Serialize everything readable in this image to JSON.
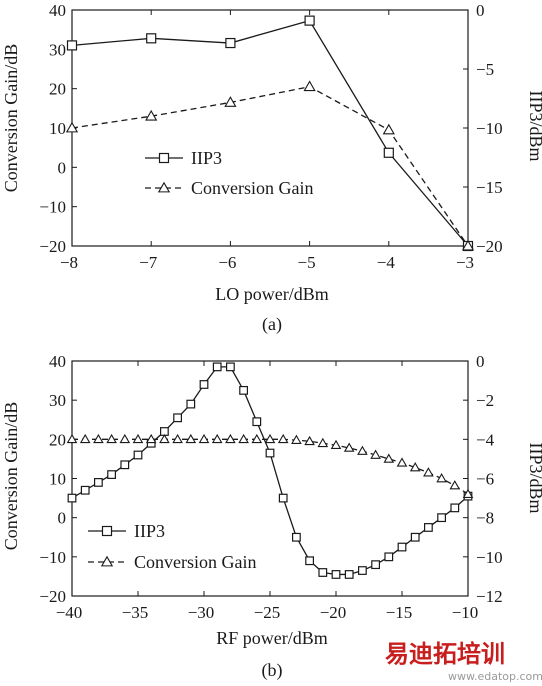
{
  "chart_data": [
    {
      "type": "line",
      "caption": "(a)",
      "xlabel": "LO power/dBm",
      "ylabel_left": "Conversion Gain/dB",
      "ylabel_right": "IIP3/dBm",
      "xlim": [
        -8,
        -3
      ],
      "ylim_left": [
        -20,
        40
      ],
      "ylim_right": [
        -20,
        0
      ],
      "x_ticks": [
        -8,
        -7,
        -6,
        -5,
        -4,
        -3
      ],
      "y_left_ticks": [
        -20,
        -10,
        0,
        10,
        20,
        30,
        40
      ],
      "y_right_ticks": [
        -20,
        -15,
        -10,
        -5,
        0
      ],
      "legend_position": "center-left",
      "grid": false,
      "series": [
        {
          "name": "IIP3",
          "axis": "right",
          "marker": "square",
          "style": "solid",
          "x": [
            -8,
            -7,
            -6,
            -5,
            -4,
            -3
          ],
          "y": [
            -3.0,
            -2.4,
            -2.8,
            -0.9,
            -12.1,
            -20.0
          ]
        },
        {
          "name": "Conversion Gain",
          "axis": "left",
          "marker": "triangle",
          "style": "dashed",
          "x": [
            -8,
            -7,
            -6,
            -5,
            -4,
            -3
          ],
          "y": [
            10,
            13,
            16.5,
            20.5,
            9.5,
            -20
          ]
        }
      ]
    },
    {
      "type": "line",
      "caption": "(b)",
      "xlabel": "RF power/dBm",
      "ylabel_left": "Conversion Gain/dB",
      "ylabel_right": "IIP3/dBm",
      "xlim": [
        -40,
        -10
      ],
      "ylim_left": [
        -20,
        40
      ],
      "ylim_right": [
        -12,
        0
      ],
      "x_ticks": [
        -40,
        -35,
        -30,
        -25,
        -20,
        -15,
        -10
      ],
      "y_left_ticks": [
        -20,
        -10,
        0,
        10,
        20,
        30,
        40
      ],
      "y_right_ticks": [
        -12,
        -10,
        -8,
        -6,
        -4,
        -2,
        0
      ],
      "legend_position": "bottom-left",
      "grid": false,
      "series": [
        {
          "name": "IIP3",
          "axis": "right",
          "marker": "square",
          "style": "solid",
          "x": [
            -40,
            -39,
            -38,
            -37,
            -36,
            -35,
            -34,
            -33,
            -32,
            -31,
            -30,
            -29,
            -28,
            -27,
            -26,
            -25,
            -24,
            -23,
            -22,
            -21,
            -20,
            -19,
            -18,
            -17,
            -16,
            -15,
            -14,
            -13,
            -12,
            -11,
            -10
          ],
          "y": [
            -7.0,
            -6.6,
            -6.2,
            -5.8,
            -5.3,
            -4.8,
            -4.2,
            -3.6,
            -2.9,
            -2.2,
            -1.2,
            -0.3,
            -0.3,
            -1.5,
            -3.1,
            -4.7,
            -7.0,
            -9.0,
            -10.2,
            -10.8,
            -10.9,
            -10.9,
            -10.7,
            -10.4,
            -10.0,
            -9.5,
            -9.0,
            -8.5,
            -8.0,
            -7.5,
            -6.9
          ]
        },
        {
          "name": "Conversion Gain",
          "axis": "left",
          "marker": "triangle",
          "style": "dashed",
          "x": [
            -40,
            -39,
            -38,
            -37,
            -36,
            -35,
            -34,
            -33,
            -32,
            -31,
            -30,
            -29,
            -28,
            -27,
            -26,
            -25,
            -24,
            -23,
            -22,
            -21,
            -20,
            -19,
            -18,
            -17,
            -16,
            -15,
            -14,
            -13,
            -12,
            -11,
            -10
          ],
          "y": [
            20,
            20,
            20,
            20,
            20,
            20,
            20,
            20,
            20,
            20,
            20,
            20,
            20,
            20,
            20,
            20,
            20,
            19.8,
            19.5,
            19.0,
            18.5,
            17.8,
            17.0,
            16.0,
            15.0,
            14.0,
            12.8,
            11.5,
            10.0,
            8.2,
            6.0
          ]
        }
      ]
    }
  ],
  "watermark": {
    "chinese_text": "易迪拓培训",
    "url_text": "www.edatop.com",
    "color": "#c81e1e"
  }
}
